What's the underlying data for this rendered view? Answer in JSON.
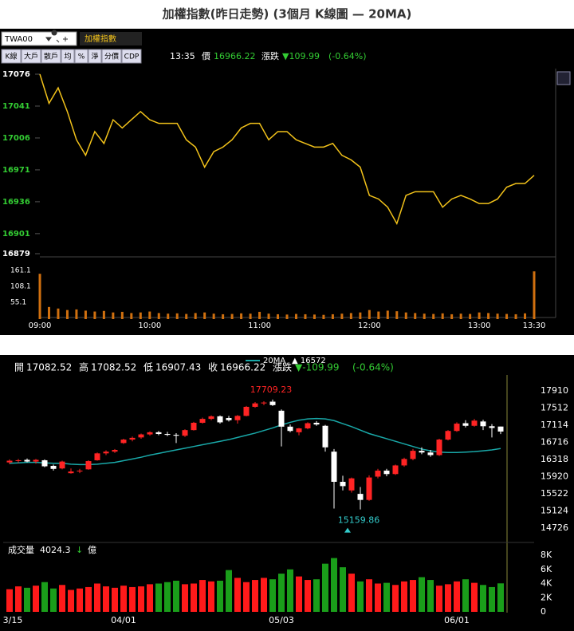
{
  "title": "加權指數(昨日走勢) (3個月 K線圖 — 20MA)",
  "toolbar": {
    "symbol": "TWA00",
    "name": "加權指數",
    "buttons": [
      "K線",
      "大戶",
      "散戶",
      "均",
      "%",
      "淨",
      "分價",
      "CDP"
    ],
    "time": "13:35",
    "price_label": "價",
    "price": "16966.22",
    "change_label": "漲跌",
    "change": "▼109.99",
    "change_pct": "(-0.64%)"
  },
  "chart_data": [
    {
      "type": "line",
      "color": "#f2c21a",
      "x": [
        "09:00",
        "09:05",
        "09:10",
        "09:15",
        "09:20",
        "09:25",
        "09:30",
        "09:35",
        "09:40",
        "09:45",
        "09:50",
        "09:55",
        "10:00",
        "10:05",
        "10:10",
        "10:15",
        "10:20",
        "10:25",
        "10:30",
        "10:35",
        "10:40",
        "10:45",
        "10:50",
        "10:55",
        "11:00",
        "11:05",
        "11:10",
        "11:15",
        "11:20",
        "11:25",
        "11:30",
        "11:35",
        "11:40",
        "11:45",
        "11:50",
        "11:55",
        "12:00",
        "12:05",
        "12:10",
        "12:15",
        "12:20",
        "12:25",
        "12:30",
        "12:35",
        "12:40",
        "12:45",
        "12:50",
        "12:55",
        "13:00",
        "13:05",
        "13:10",
        "13:15",
        "13:20",
        "13:25",
        "13:30"
      ],
      "values": [
        17076,
        17044,
        17061,
        17035,
        17004,
        16987,
        17013,
        17000,
        17026,
        17017,
        17026,
        17035,
        17026,
        17022,
        17022,
        17022,
        17004,
        16996,
        16974,
        16991,
        16996,
        17004,
        17017,
        17022,
        17022,
        17004,
        17013,
        17013,
        17004,
        17000,
        16996,
        16996,
        17000,
        16987,
        16982,
        16974,
        16943,
        16939,
        16930,
        16912,
        16943,
        16947,
        16947,
        16947,
        16930,
        16939,
        16943,
        16939,
        16934,
        16934,
        16939,
        16952,
        16956,
        16956,
        16965
      ],
      "xlim": [
        "09:00",
        "13:30"
      ],
      "xticks": [
        "09:00",
        "10:00",
        "11:00",
        "12:00",
        "13:00",
        "13:30"
      ],
      "ylim": [
        16879,
        17076
      ],
      "yticks": [
        17076,
        17041,
        17006,
        16971,
        16936,
        16901,
        16879
      ]
    },
    {
      "type": "bar",
      "color": "#d0700f",
      "x": [
        "09:00",
        "09:05",
        "09:10",
        "09:15",
        "09:20",
        "09:25",
        "09:30",
        "09:35",
        "09:40",
        "09:45",
        "09:50",
        "09:55",
        "10:00",
        "10:05",
        "10:10",
        "10:15",
        "10:20",
        "10:25",
        "10:30",
        "10:35",
        "10:40",
        "10:45",
        "10:50",
        "10:55",
        "11:00",
        "11:05",
        "11:10",
        "11:15",
        "11:20",
        "11:25",
        "11:30",
        "11:35",
        "11:40",
        "11:45",
        "11:50",
        "11:55",
        "12:00",
        "12:05",
        "12:10",
        "12:15",
        "12:20",
        "12:25",
        "12:30",
        "12:35",
        "12:40",
        "12:45",
        "12:50",
        "12:55",
        "13:00",
        "13:05",
        "13:10",
        "13:15",
        "13:20",
        "13:25",
        "13:30"
      ],
      "values": [
        150,
        40,
        35,
        30,
        32,
        28,
        25,
        27,
        22,
        24,
        20,
        22,
        25,
        20,
        18,
        19,
        17,
        20,
        22,
        18,
        16,
        17,
        19,
        18,
        24,
        18,
        16,
        15,
        17,
        16,
        15,
        14,
        16,
        18,
        20,
        22,
        30,
        25,
        28,
        26,
        22,
        20,
        18,
        17,
        19,
        16,
        18,
        17,
        22,
        20,
        18,
        17,
        16,
        19,
        158
      ],
      "ylim": [
        0,
        161.1
      ],
      "yticks": [
        161.1,
        108.1,
        55.1
      ]
    },
    {
      "type": "candlestick",
      "up_color": "#ff2424",
      "down_color": "#ffffff",
      "header": [
        {
          "label": "開",
          "value": "17082.52"
        },
        {
          "label": "高",
          "value": "17082.52"
        },
        {
          "label": "低",
          "value": "16907.43"
        },
        {
          "label": "收",
          "value": "16966.22"
        }
      ],
      "change_label": "漲跌",
      "change": "▼-109.99",
      "change_pct": "(-0.64%)",
      "ma_value": "▲ 16572",
      "categories": [
        "3/15",
        null,
        null,
        null,
        null,
        null,
        null,
        null,
        null,
        null,
        null,
        null,
        null,
        "04/01",
        null,
        null,
        null,
        null,
        null,
        null,
        null,
        null,
        null,
        null,
        null,
        null,
        null,
        null,
        null,
        null,
        null,
        "05/03",
        null,
        null,
        null,
        null,
        null,
        null,
        null,
        null,
        null,
        null,
        null,
        null,
        null,
        null,
        null,
        null,
        null,
        null,
        null,
        "06/01",
        null,
        null,
        null,
        null,
        null
      ],
      "open": [
        16250,
        16290,
        16310,
        16270,
        16300,
        16170,
        16110,
        16000,
        16040,
        16090,
        16300,
        16460,
        16500,
        16700,
        16780,
        16830,
        16900,
        16950,
        16910,
        16890,
        16870,
        17000,
        17170,
        17260,
        17320,
        17280,
        17230,
        17330,
        17540,
        17620,
        17660,
        17450,
        17080,
        16950,
        17040,
        17170,
        17100,
        16500,
        15800,
        15600,
        15520,
        15380,
        15920,
        16060,
        15980,
        16180,
        16330,
        16520,
        16480,
        16420,
        16780,
        16980,
        17160,
        17100,
        17200,
        17090,
        17082.52
      ],
      "high": [
        16320,
        16330,
        16340,
        16330,
        16320,
        16200,
        16290,
        16110,
        16100,
        16300,
        16480,
        16530,
        16560,
        16800,
        16850,
        16920,
        16970,
        16980,
        16960,
        16930,
        17020,
        17190,
        17290,
        17340,
        17340,
        17330,
        17350,
        17560,
        17650,
        17670,
        17709.23,
        17480,
        17130,
        17050,
        17180,
        17210,
        17120,
        16560,
        15940,
        15900,
        15680,
        15950,
        16100,
        16100,
        16200,
        16360,
        16560,
        16600,
        16540,
        16800,
        17000,
        17180,
        17230,
        17260,
        17240,
        17140,
        17082.52
      ],
      "low": [
        16210,
        16240,
        16250,
        16220,
        16140,
        16060,
        16090,
        15990,
        16000,
        16080,
        16290,
        16420,
        16470,
        16680,
        16740,
        16800,
        16870,
        16880,
        16860,
        16700,
        16840,
        16990,
        17150,
        17230,
        17150,
        17200,
        17150,
        17320,
        17520,
        17580,
        17560,
        16620,
        16950,
        16880,
        17020,
        17100,
        16500,
        15180,
        15600,
        15550,
        15159.86,
        15360,
        15880,
        15930,
        15960,
        16150,
        16300,
        16440,
        16380,
        16400,
        16760,
        16960,
        17060,
        17080,
        17000,
        16830,
        16907.43
      ],
      "close": [
        16290,
        16300,
        16270,
        16310,
        16160,
        16100,
        16270,
        16040,
        16060,
        16280,
        16460,
        16500,
        16540,
        16780,
        16820,
        16900,
        16950,
        16910,
        16890,
        16870,
        17000,
        17170,
        17260,
        17320,
        17180,
        17230,
        17330,
        17540,
        17620,
        17640,
        17580,
        17080,
        16980,
        17040,
        17160,
        17130,
        16600,
        15800,
        15700,
        15880,
        15380,
        15900,
        16060,
        15980,
        16180,
        16330,
        16520,
        16480,
        16420,
        16780,
        16980,
        17150,
        17100,
        17220,
        17090,
        17050,
        16966.22
      ],
      "series": [
        {
          "name": "20MA",
          "color": "#19a8a8",
          "values": [
            16230,
            16240,
            16250,
            16250,
            16240,
            16230,
            16230,
            16210,
            16200,
            16200,
            16210,
            16230,
            16250,
            16290,
            16330,
            16370,
            16420,
            16460,
            16500,
            16540,
            16580,
            16620,
            16660,
            16700,
            16740,
            16780,
            16830,
            16880,
            16930,
            16990,
            17050,
            17120,
            17180,
            17230,
            17260,
            17270,
            17260,
            17220,
            17150,
            17080,
            17000,
            16920,
            16860,
            16800,
            16740,
            16680,
            16620,
            16560,
            16520,
            16490,
            16480,
            16480,
            16490,
            16500,
            16520,
            16540,
            16572
          ]
        }
      ],
      "annotations": [
        "17709.23",
        "15159.86"
      ],
      "ylim": [
        14726,
        17910
      ],
      "yticks": [
        17910,
        17512,
        17114,
        16716,
        16318,
        15920,
        15522,
        15124,
        14726
      ]
    },
    {
      "type": "bar",
      "title": "成交量",
      "latest": "4024.3",
      "arrow": "↓",
      "unit": "億",
      "up_color": "#ff1a1a",
      "down_color": "#1a9e1a",
      "values": [
        3200,
        3600,
        3400,
        3700,
        4200,
        3300,
        3800,
        3100,
        3300,
        3500,
        4000,
        3600,
        3400,
        3700,
        3500,
        3600,
        3900,
        4000,
        4200,
        4400,
        3900,
        4000,
        4500,
        4300,
        4400,
        5900,
        4800,
        4200,
        4500,
        4800,
        4600,
        5400,
        6000,
        5000,
        4500,
        4600,
        6800,
        7600,
        6300,
        5400,
        4300,
        4600,
        4000,
        4100,
        3800,
        4300,
        4500,
        4900,
        4500,
        3700,
        3900,
        4300,
        4600,
        4100,
        3800,
        3500,
        4024.3
      ],
      "ylim": [
        0,
        8000
      ],
      "yticks": [
        {
          "value": 8000,
          "label": "8K"
        },
        {
          "value": 6000,
          "label": "6K"
        },
        {
          "value": 4000,
          "label": "4K"
        },
        {
          "value": 2000,
          "label": "2K"
        },
        0
      ]
    }
  ]
}
